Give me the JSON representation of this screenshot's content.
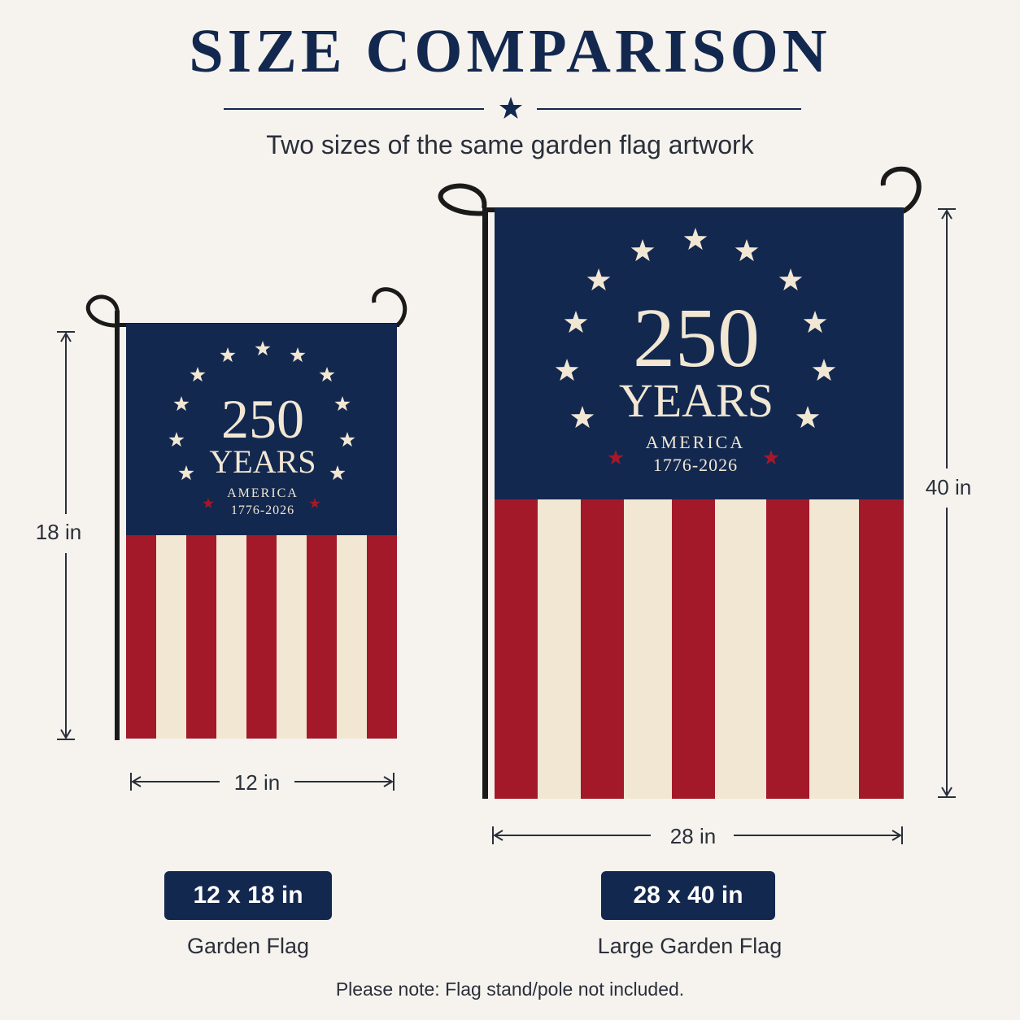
{
  "header": {
    "title": "SIZE COMPARISON",
    "subtitle": "Two sizes of the same garden flag artwork"
  },
  "flag_artwork": {
    "number": "250",
    "word": "YEARS",
    "country": "AMERICA",
    "years": "1776-2026"
  },
  "small_flag": {
    "height_label": "18 in",
    "width_label": "12 in",
    "size_badge": "12 x 18 in",
    "caption": "Garden Flag"
  },
  "large_flag": {
    "height_label": "40 in",
    "width_label": "28 in",
    "size_badge": "28 x 40 in",
    "caption": "Large Garden Flag"
  },
  "note": "Please note: Flag stand/pole not included.",
  "colors": {
    "navy": "#13284f",
    "red": "#a3192a",
    "cream": "#f1e7d3",
    "background": "#f6f3ee"
  }
}
